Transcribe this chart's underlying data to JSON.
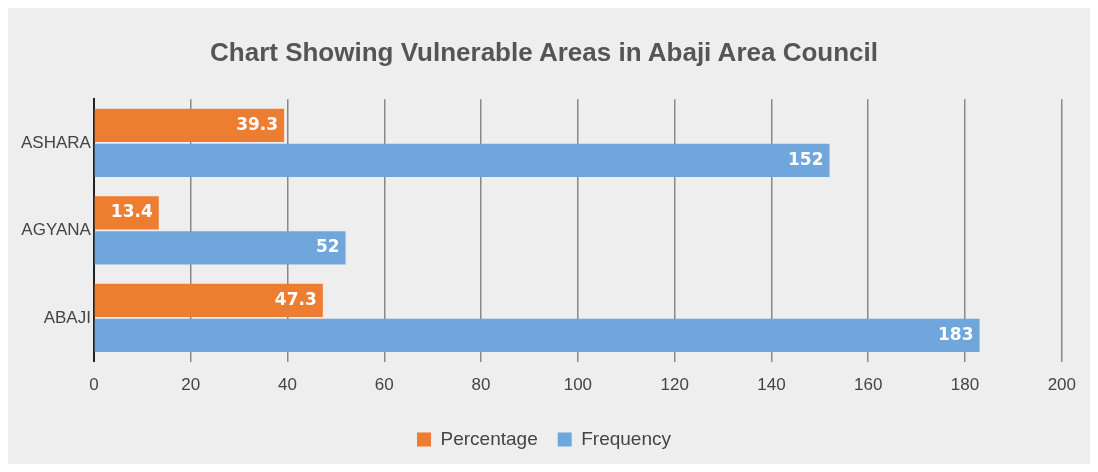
{
  "chart_data": {
    "type": "bar",
    "orientation": "horizontal",
    "title": "Chart Showing Vulnerable Areas in Abaji Area Council",
    "categories": [
      "ASHARA",
      "AGYANA",
      "ABAJI"
    ],
    "series": [
      {
        "name": "Percentage",
        "color": "#ed7d31",
        "values": [
          39.3,
          13.4,
          47.3
        ]
      },
      {
        "name": "Frequency",
        "color": "#6fa6dc",
        "values": [
          152,
          52,
          183
        ]
      }
    ],
    "xlim": [
      0,
      200
    ],
    "xticks": [
      0,
      20,
      40,
      60,
      80,
      100,
      120,
      140,
      160,
      180,
      200
    ],
    "grid": "x",
    "legend": "bottom",
    "data_labels": true
  }
}
